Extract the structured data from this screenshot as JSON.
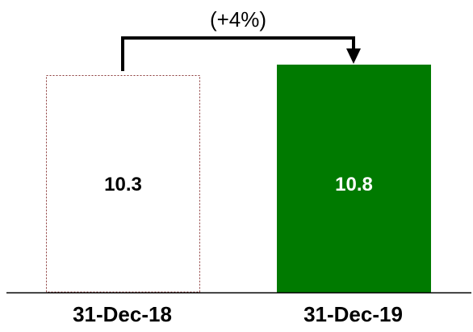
{
  "chart_data": {
    "type": "bar",
    "title": "",
    "xlabel": "",
    "ylabel": "",
    "categories": [
      "31-Dec-18",
      "31-Dec-19"
    ],
    "values": [
      10.3,
      10.8
    ],
    "value_labels": [
      "10.3",
      "10.8"
    ],
    "ylim": [
      0,
      10.8
    ],
    "grid": false,
    "legend": "none",
    "annotation": {
      "text": "(+4%)",
      "from_category": "31-Dec-18",
      "to_category": "31-Dec-19"
    },
    "bar_styles": [
      {
        "fill": "#ffffff",
        "outline": "#8b3a3a",
        "outline_style": "dotted"
      },
      {
        "fill": "#007a00",
        "outline": "#007a00",
        "outline_style": "solid"
      }
    ],
    "label_colors": [
      "#000000",
      "#ffffff"
    ]
  }
}
